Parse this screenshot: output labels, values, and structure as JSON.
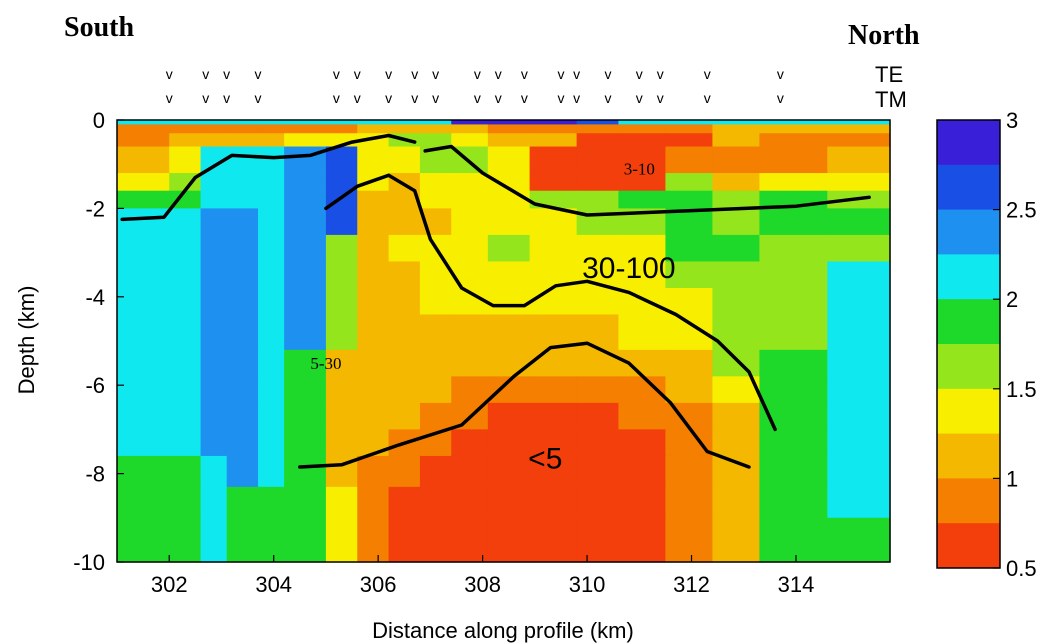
{
  "header": {
    "left": "South",
    "right": "North"
  },
  "chart_data": {
    "type": "heatmap",
    "xlabel": "Distance along profile (km)",
    "ylabel": "Depth (km)",
    "xlim": [
      301,
      315.8
    ],
    "ylim": [
      -10,
      0
    ],
    "x_ticks": [
      302,
      304,
      306,
      308,
      310,
      312,
      314
    ],
    "y_ticks": [
      0,
      -2,
      -4,
      -6,
      -8,
      -10
    ],
    "colorbar": {
      "ticks": [
        3,
        2.5,
        2,
        1.5,
        1,
        0.5
      ],
      "colors": [
        "#3a1fd8",
        "#1a4fe6",
        "#1e90f0",
        "#10e8ef",
        "#1ed82a",
        "#94e51c",
        "#f8ef00",
        "#f5b800",
        "#f47f00",
        "#f23f0c"
      ]
    },
    "station_rows": [
      "TE",
      "TM"
    ],
    "stations_km": [
      302,
      302.7,
      303.1,
      303.7,
      305.2,
      305.6,
      306.2,
      306.7,
      307.1,
      307.9,
      308.3,
      308.8,
      309.5,
      309.8,
      310.4,
      311.0,
      311.4,
      312.3,
      313.7
    ],
    "annotations": [
      {
        "text": "3-10",
        "x": 311.0,
        "y": -1.15,
        "size": 17,
        "family": "serif"
      },
      {
        "text": "30-100",
        "x": 310.8,
        "y": -3.4,
        "size": 30,
        "family": "sans"
      },
      {
        "text": "5-30",
        "x": 305.0,
        "y": -5.55,
        "size": 17,
        "family": "serif"
      },
      {
        "text": "<5",
        "x": 309.2,
        "y": -7.7,
        "size": 30,
        "family": "sans"
      }
    ],
    "contours": [
      {
        "points": [
          [
            301.1,
            -2.25
          ],
          [
            301.9,
            -2.2
          ],
          [
            302.5,
            -1.3
          ],
          [
            303.2,
            -0.8
          ],
          [
            304.0,
            -0.85
          ],
          [
            304.7,
            -0.8
          ],
          [
            305.5,
            -0.5
          ],
          [
            306.2,
            -0.35
          ],
          [
            306.7,
            -0.5
          ]
        ]
      },
      {
        "points": [
          [
            306.9,
            -0.7
          ],
          [
            307.4,
            -0.6
          ],
          [
            308.0,
            -1.2
          ],
          [
            309.0,
            -1.9
          ],
          [
            310.0,
            -2.15
          ],
          [
            312.0,
            -2.05
          ],
          [
            314.0,
            -1.95
          ],
          [
            315.4,
            -1.75
          ]
        ]
      },
      {
        "points": [
          [
            305.0,
            -2.0
          ],
          [
            305.6,
            -1.5
          ],
          [
            306.2,
            -1.25
          ],
          [
            306.7,
            -1.6
          ],
          [
            307.0,
            -2.7
          ],
          [
            307.6,
            -3.8
          ],
          [
            308.2,
            -4.2
          ],
          [
            308.8,
            -4.2
          ],
          [
            309.4,
            -3.75
          ],
          [
            310.0,
            -3.65
          ],
          [
            310.8,
            -3.9
          ],
          [
            311.7,
            -4.4
          ],
          [
            312.5,
            -5.0
          ],
          [
            313.1,
            -5.7
          ],
          [
            313.6,
            -7.0
          ]
        ]
      },
      {
        "points": [
          [
            304.5,
            -7.85
          ],
          [
            305.3,
            -7.8
          ],
          [
            306.4,
            -7.35
          ],
          [
            307.6,
            -6.9
          ],
          [
            308.6,
            -5.8
          ],
          [
            309.3,
            -5.15
          ],
          [
            310.0,
            -5.05
          ],
          [
            310.8,
            -5.5
          ],
          [
            311.6,
            -6.4
          ],
          [
            312.3,
            -7.5
          ],
          [
            313.1,
            -7.85
          ]
        ]
      }
    ]
  }
}
